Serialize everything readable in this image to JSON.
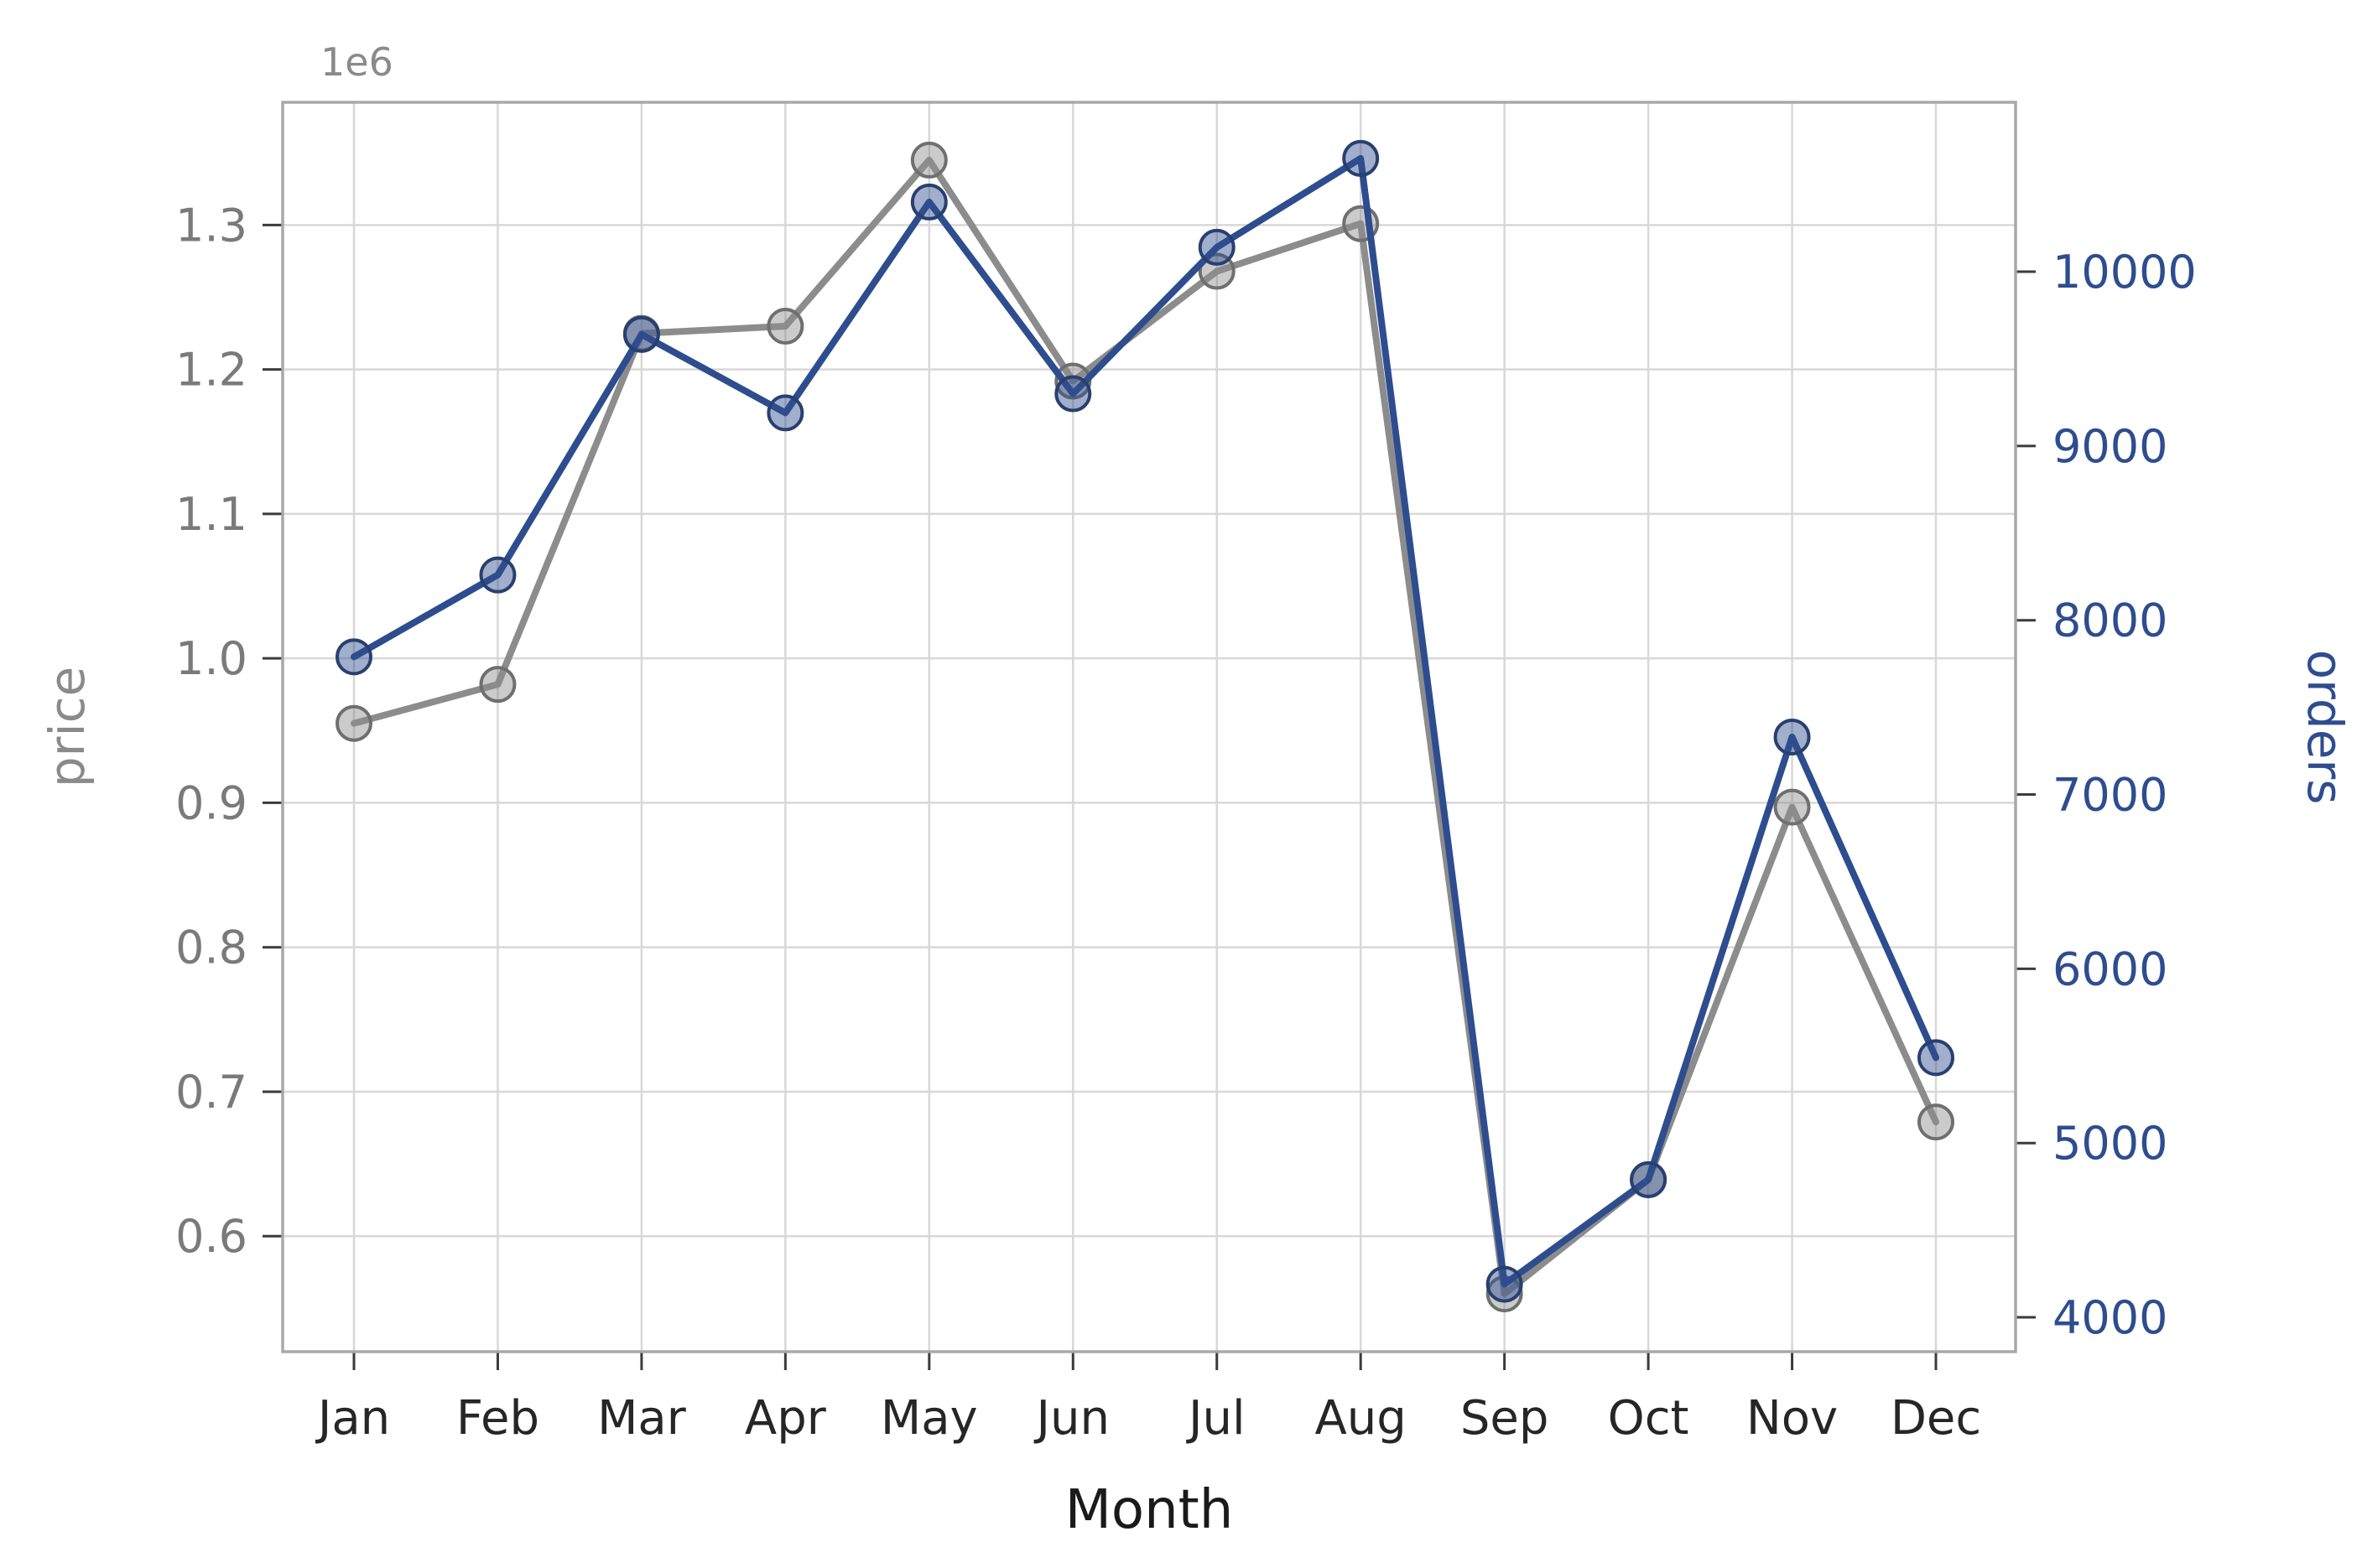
{
  "chart_data": {
    "type": "line",
    "title": "",
    "xlabel": "Month",
    "categories": [
      "Jan",
      "Feb",
      "Mar",
      "Apr",
      "May",
      "Jun",
      "Jul",
      "Aug",
      "Sep",
      "Oct",
      "Nov",
      "Dec"
    ],
    "left_axis": {
      "label": "price",
      "offset_text": "1e6",
      "color": "#7a7a7a",
      "range": [
        520000,
        1385000
      ],
      "ticks": [
        {
          "label": "0.6",
          "value": 600000
        },
        {
          "label": "0.7",
          "value": 700000
        },
        {
          "label": "0.8",
          "value": 800000
        },
        {
          "label": "0.9",
          "value": 900000
        },
        {
          "label": "1.0",
          "value": 1000000
        },
        {
          "label": "1.1",
          "value": 1100000
        },
        {
          "label": "1.2",
          "value": 1200000
        },
        {
          "label": "1.3",
          "value": 1300000
        }
      ]
    },
    "right_axis": {
      "label": "orders",
      "color": "#2e4d8f",
      "range": [
        3803,
        10972
      ],
      "ticks": [
        {
          "label": "4000",
          "value": 4000
        },
        {
          "label": "5000",
          "value": 5000
        },
        {
          "label": "6000",
          "value": 6000
        },
        {
          "label": "7000",
          "value": 7000
        },
        {
          "label": "8000",
          "value": 8000
        },
        {
          "label": "9000",
          "value": 9000
        },
        {
          "label": "10000",
          "value": 10000
        }
      ]
    },
    "grid": true,
    "legend": "none",
    "series": [
      {
        "name": "price",
        "axis": "left",
        "color": "#8c8c8c",
        "marker_edge": "#6f6f6f",
        "values": [
          955000,
          982000,
          1225000,
          1230000,
          1345000,
          1192000,
          1268000,
          1301000,
          560000,
          639000,
          897000,
          679000
        ]
      },
      {
        "name": "orders",
        "axis": "right",
        "color": "#2e4d8f",
        "marker_edge": "#27406f",
        "values": [
          7790,
          8260,
          9640,
          9190,
          10400,
          9300,
          10140,
          10650,
          4190,
          4790,
          7330,
          5490
        ]
      }
    ]
  }
}
